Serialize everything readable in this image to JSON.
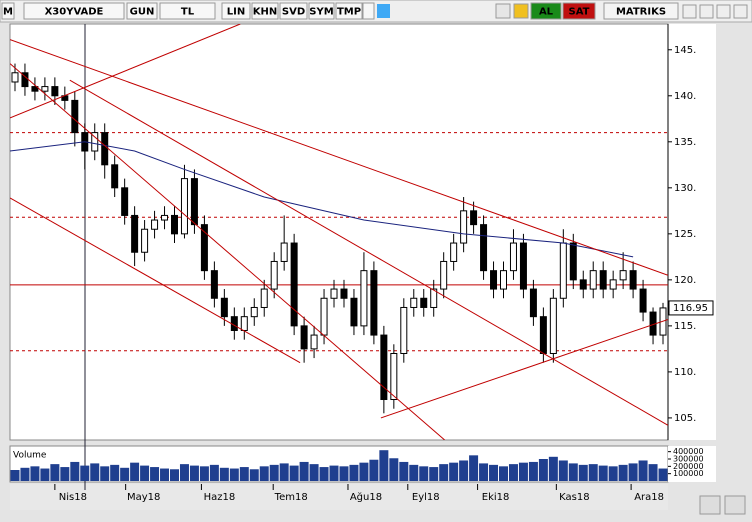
{
  "toolbar": {
    "logo": "M",
    "symbol": "X30YVADE",
    "buttons": [
      "GUN",
      "TL",
      "LIN",
      "KHN",
      "SVD",
      "SYM",
      "TMP"
    ],
    "buy": "AL",
    "sell": "SAT",
    "brand": "MATRIKS"
  },
  "chart_data": {
    "type": "candlestick",
    "volume_label": "Volume",
    "xlim": [
      -0.5,
      65.5
    ],
    "xticks": [
      {
        "value": 4.0,
        "label": "Nis18"
      },
      {
        "value": 11.1,
        "label": "May18"
      },
      {
        "value": 18.7,
        "label": "Haz18"
      },
      {
        "value": 25.9,
        "label": "Tem18"
      },
      {
        "value": 33.4,
        "label": "Ağu18"
      },
      {
        "value": 39.4,
        "label": "Eyl18"
      },
      {
        "value": 46.4,
        "label": "Eki18"
      },
      {
        "value": 54.3,
        "label": "Kas18"
      },
      {
        "value": 61.8,
        "label": "Ara18"
      }
    ],
    "ylim": [
      102.6,
      147.8
    ],
    "yticks": [
      {
        "value": 105,
        "label": "105."
      },
      {
        "value": 110,
        "label": "110."
      },
      {
        "value": 115,
        "label": "115."
      },
      {
        "value": 120,
        "label": "120."
      },
      {
        "value": 125,
        "label": "125."
      },
      {
        "value": 130,
        "label": "130."
      },
      {
        "value": 135,
        "label": "135."
      },
      {
        "value": 140,
        "label": "140."
      },
      {
        "value": 145,
        "label": "145."
      }
    ],
    "open": [
      141.5,
      142.5,
      141,
      140.5,
      141,
      140,
      139.5,
      136,
      134,
      136,
      132.5,
      130,
      127,
      123,
      125.5,
      126.5,
      127,
      125,
      131,
      126,
      121,
      118,
      116,
      114.5,
      116,
      117,
      119,
      122,
      124,
      115,
      112.5,
      114,
      118,
      119,
      118,
      115,
      121,
      114,
      107,
      112,
      117,
      118,
      117,
      119,
      122,
      124,
      127.5,
      126,
      121,
      119,
      121,
      124,
      119,
      116,
      112,
      118,
      124,
      120,
      119,
      121,
      119,
      120,
      121,
      119,
      116.5,
      114
    ],
    "high": [
      143.5,
      143.5,
      142,
      142,
      142,
      141,
      140.5,
      137,
      137,
      137,
      133.5,
      131,
      128,
      126.5,
      127.5,
      128,
      128,
      132.5,
      132,
      127,
      122,
      119,
      117,
      117,
      118,
      120,
      123,
      127,
      125,
      116,
      115,
      119,
      120,
      120,
      119,
      123,
      122,
      115,
      113,
      118,
      119,
      119,
      120,
      123,
      125,
      129,
      128.5,
      127,
      122,
      122,
      125.5,
      125,
      120,
      117,
      119,
      125.5,
      125,
      121,
      122,
      122,
      121,
      123,
      122,
      120,
      117,
      117.5
    ],
    "low": [
      140.5,
      140,
      139.5,
      139.5,
      139,
      138.5,
      134.5,
      132,
      133,
      131,
      129,
      126,
      121.5,
      122,
      124.5,
      125.5,
      124,
      124.5,
      125,
      120,
      117,
      115,
      113.5,
      113.5,
      115,
      116,
      118,
      121,
      114,
      111,
      111.5,
      113,
      117,
      117,
      114,
      114,
      113,
      105.5,
      106,
      111,
      116,
      116,
      116,
      118,
      121,
      123,
      125,
      120,
      118,
      118,
      120,
      118,
      115,
      111,
      111,
      117,
      119,
      118,
      118,
      118,
      118,
      119,
      118,
      115.5,
      113,
      113
    ],
    "close": [
      142.5,
      141,
      140.5,
      141,
      140,
      139.5,
      136,
      134,
      136,
      132.5,
      130,
      127,
      123,
      125.5,
      126.5,
      127,
      125,
      131,
      126,
      121,
      118,
      116,
      114.5,
      116,
      117,
      119,
      122,
      124,
      115,
      112.5,
      114,
      118,
      119,
      118,
      115,
      121,
      114,
      107,
      112,
      117,
      118,
      117,
      119,
      122,
      124,
      127.5,
      126,
      121,
      119,
      121,
      124,
      119,
      116,
      112,
      118,
      124,
      120,
      119,
      121,
      119,
      120,
      121,
      119,
      116.5,
      114,
      116.95
    ],
    "up_color": "#ffffff",
    "down_color": "#000000",
    "volume": {
      "color": "#1f3f8f",
      "ylim": [
        0,
        450000
      ],
      "yticks": [
        100000,
        200000,
        300000,
        400000
      ],
      "values": [
        150000,
        180000,
        200000,
        170000,
        230000,
        190000,
        260000,
        210000,
        240000,
        200000,
        220000,
        180000,
        250000,
        210000,
        190000,
        170000,
        160000,
        230000,
        210000,
        200000,
        220000,
        180000,
        170000,
        190000,
        160000,
        200000,
        220000,
        240000,
        210000,
        260000,
        230000,
        190000,
        210000,
        200000,
        220000,
        250000,
        290000,
        420000,
        310000,
        260000,
        220000,
        200000,
        190000,
        230000,
        250000,
        280000,
        350000,
        240000,
        220000,
        200000,
        230000,
        250000,
        260000,
        300000,
        330000,
        280000,
        240000,
        220000,
        230000,
        210000,
        200000,
        220000,
        240000,
        280000,
        230000,
        170000
      ]
    },
    "moving_average": {
      "color": "#1a237e",
      "x": [
        -0.5,
        7,
        12,
        17,
        25,
        35,
        45,
        55,
        62
      ],
      "values": [
        134,
        135,
        134,
        132,
        129,
        126.5,
        125,
        124,
        122.5
      ]
    },
    "trendlines": {
      "color": "#c00000",
      "lines": [
        {
          "x": [
            -0.5,
            65.5
          ],
          "y": [
            146.1,
            120.5
          ]
        },
        {
          "x": [
            -0.5,
            43.1
          ],
          "y": [
            143.5,
            102.6
          ]
        },
        {
          "x": [
            5.5,
            65.5
          ],
          "y": [
            141.7,
            104.2
          ]
        },
        {
          "x": [
            -0.5,
            28.6
          ],
          "y": [
            128.9,
            111.0
          ]
        },
        {
          "x": [
            -0.5,
            22.6
          ],
          "y": [
            137.6,
            147.8
          ]
        },
        {
          "x": [
            36.7,
            65.5
          ],
          "y": [
            105.0,
            115.7
          ]
        }
      ]
    },
    "levels": [
      {
        "value": 119.45,
        "style": "solid"
      },
      {
        "value": 136,
        "style": "dashed"
      },
      {
        "value": 126.8,
        "style": "dashed"
      },
      {
        "value": 112.3,
        "style": "dashed"
      }
    ]
  }
}
